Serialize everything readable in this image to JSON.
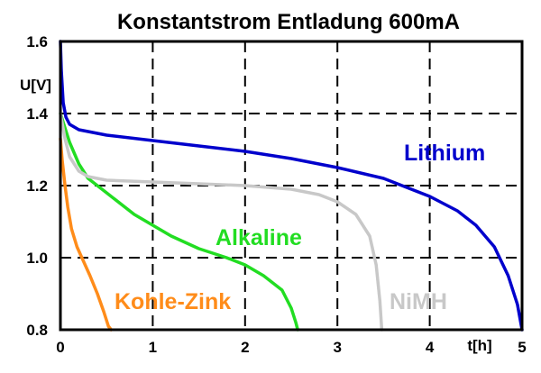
{
  "chart_data": {
    "type": "line",
    "title": "Konstantstrom Entladung 600mA",
    "xlabel": "t[h]",
    "ylabel": "U[V]",
    "xlim": [
      0,
      5
    ],
    "ylim": [
      0.8,
      1.6
    ],
    "x_ticks": [
      "0",
      "1",
      "2",
      "3",
      "4",
      "5"
    ],
    "y_ticks": [
      "0.8",
      "1.0",
      "1.2",
      "1.4",
      "1.6"
    ],
    "grid": true,
    "series": [
      {
        "name": "Lithium",
        "color": "#0000cc",
        "points": [
          [
            0,
            1.6
          ],
          [
            0.01,
            1.52
          ],
          [
            0.03,
            1.43
          ],
          [
            0.06,
            1.39
          ],
          [
            0.1,
            1.37
          ],
          [
            0.2,
            1.355
          ],
          [
            0.5,
            1.34
          ],
          [
            1.0,
            1.325
          ],
          [
            1.5,
            1.31
          ],
          [
            2.0,
            1.295
          ],
          [
            2.5,
            1.275
          ],
          [
            3.0,
            1.25
          ],
          [
            3.5,
            1.22
          ],
          [
            4.0,
            1.17
          ],
          [
            4.3,
            1.13
          ],
          [
            4.5,
            1.09
          ],
          [
            4.7,
            1.03
          ],
          [
            4.85,
            0.95
          ],
          [
            4.95,
            0.87
          ],
          [
            5.0,
            0.8
          ]
        ]
      },
      {
        "name": "Alkaline",
        "color": "#22dd22",
        "points": [
          [
            0,
            1.4
          ],
          [
            0.05,
            1.36
          ],
          [
            0.1,
            1.32
          ],
          [
            0.2,
            1.26
          ],
          [
            0.3,
            1.22
          ],
          [
            0.5,
            1.18
          ],
          [
            0.8,
            1.12
          ],
          [
            1.0,
            1.09
          ],
          [
            1.2,
            1.06
          ],
          [
            1.5,
            1.025
          ],
          [
            1.8,
            1.0
          ],
          [
            2.0,
            0.98
          ],
          [
            2.2,
            0.95
          ],
          [
            2.4,
            0.91
          ],
          [
            2.5,
            0.86
          ],
          [
            2.55,
            0.82
          ],
          [
            2.57,
            0.8
          ]
        ]
      },
      {
        "name": "NiMH",
        "color": "#c8c8c8",
        "points": [
          [
            0,
            1.4
          ],
          [
            0.05,
            1.33
          ],
          [
            0.1,
            1.28
          ],
          [
            0.2,
            1.24
          ],
          [
            0.3,
            1.225
          ],
          [
            0.5,
            1.215
          ],
          [
            1.0,
            1.21
          ],
          [
            1.5,
            1.205
          ],
          [
            2.0,
            1.2
          ],
          [
            2.5,
            1.19
          ],
          [
            2.8,
            1.175
          ],
          [
            3.0,
            1.155
          ],
          [
            3.2,
            1.12
          ],
          [
            3.35,
            1.06
          ],
          [
            3.42,
            0.98
          ],
          [
            3.46,
            0.88
          ],
          [
            3.48,
            0.8
          ]
        ]
      },
      {
        "name": "Kohle-Zink",
        "color": "#ff8c1a",
        "points": [
          [
            0,
            1.33
          ],
          [
            0.02,
            1.27
          ],
          [
            0.05,
            1.2
          ],
          [
            0.08,
            1.14
          ],
          [
            0.12,
            1.08
          ],
          [
            0.18,
            1.03
          ],
          [
            0.25,
            0.99
          ],
          [
            0.32,
            0.95
          ],
          [
            0.4,
            0.9
          ],
          [
            0.47,
            0.85
          ],
          [
            0.52,
            0.81
          ],
          [
            0.55,
            0.8
          ]
        ]
      }
    ]
  }
}
